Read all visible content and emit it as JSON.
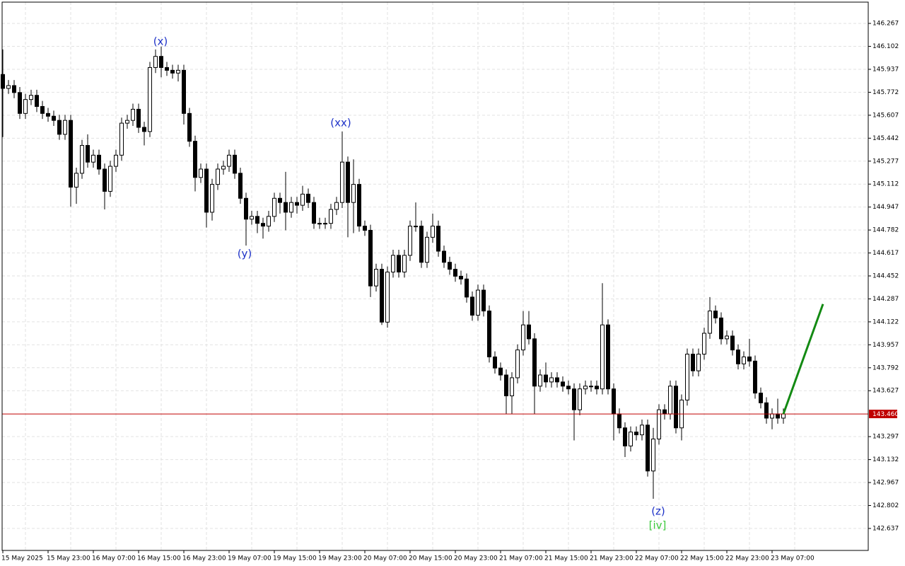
{
  "chart_data": {
    "type": "candlestick",
    "categories": [
      "15 May 2025",
      null,
      null,
      null,
      null,
      null,
      null,
      null,
      "15 May 23:00",
      null,
      null,
      null,
      null,
      null,
      null,
      null,
      "16 May 07:00",
      null,
      null,
      null,
      null,
      null,
      null,
      null,
      "16 May 15:00",
      null,
      null,
      null,
      null,
      null,
      null,
      null,
      "16 May 23:00",
      null,
      null,
      null,
      null,
      null,
      null,
      null,
      "19 May 07:00",
      null,
      null,
      null,
      null,
      null,
      null,
      null,
      "19 May 15:00",
      null,
      null,
      null,
      null,
      null,
      null,
      null,
      "19 May 23:00",
      null,
      null,
      null,
      null,
      null,
      null,
      null,
      "20 May 07:00",
      null,
      null,
      null,
      null,
      null,
      null,
      null,
      "20 May 15:00",
      null,
      null,
      null,
      null,
      null,
      null,
      null,
      "20 May 23:00",
      null,
      null,
      null,
      null,
      null,
      null,
      null,
      "21 May 07:00",
      null,
      null,
      null,
      null,
      null,
      null,
      null,
      "21 May 15:00",
      null,
      null,
      null,
      null,
      null,
      null,
      null,
      "21 May 23:00",
      null,
      null,
      null,
      null,
      null,
      null,
      null,
      "22 May 07:00",
      null,
      null,
      null,
      null,
      null,
      null,
      null,
      "22 May 15:00",
      null,
      null,
      null,
      null,
      null,
      null,
      null,
      "22 May 23:00",
      null,
      null,
      null,
      null,
      null,
      null,
      null,
      "23 May 07:00",
      null,
      null
    ],
    "open": [
      145.9,
      145.8,
      145.82,
      145.77,
      145.62,
      145.72,
      145.75,
      145.67,
      145.62,
      145.6,
      145.57,
      145.47,
      145.57,
      145.09,
      145.19,
      145.39,
      145.27,
      145.32,
      145.22,
      145.06,
      145.24,
      145.32,
      145.55,
      145.57,
      145.65,
      145.52,
      145.49,
      145.95,
      146.03,
      145.95,
      145.93,
      145.91,
      145.93,
      145.62,
      145.42,
      145.16,
      145.22,
      144.91,
      145.11,
      145.22,
      145.24,
      145.32,
      145.19,
      145.01,
      144.86,
      144.88,
      144.83,
      144.81,
      144.88,
      145.01,
      144.98,
      144.91,
      144.98,
      144.96,
      145.04,
      144.98,
      144.83,
      144.83,
      144.83,
      144.93,
      144.98,
      145.27,
      144.98,
      145.11,
      144.81,
      144.78,
      144.38,
      144.5,
      144.12,
      144.48,
      144.6,
      144.48,
      144.6,
      144.81,
      144.81,
      144.55,
      144.73,
      144.81,
      144.63,
      144.55,
      144.5,
      144.45,
      144.43,
      144.3,
      144.17,
      144.35,
      144.2,
      143.87,
      143.79,
      143.74,
      143.59,
      143.72,
      143.92,
      144.1,
      144.0,
      143.66,
      143.74,
      143.69,
      143.72,
      143.69,
      143.66,
      143.64,
      143.49,
      143.64,
      143.66,
      143.66,
      143.64,
      144.1,
      143.64,
      143.46,
      143.36,
      143.23,
      143.33,
      143.31,
      143.38,
      143.05,
      143.28,
      143.49,
      143.46,
      143.66,
      143.36,
      143.56,
      143.89,
      143.77,
      143.89,
      144.04,
      144.2,
      144.15,
      144.0,
      144.02,
      143.92,
      143.82,
      143.87,
      143.84,
      143.61,
      143.54,
      143.43,
      143.46,
      143.43
    ],
    "high": [
      146.08,
      145.86,
      145.86,
      145.81,
      145.76,
      145.79,
      145.79,
      145.71,
      145.66,
      145.64,
      145.61,
      145.61,
      145.61,
      145.23,
      145.43,
      145.47,
      145.36,
      145.36,
      145.26,
      145.28,
      145.36,
      145.59,
      145.61,
      145.69,
      145.69,
      145.56,
      145.99,
      146.08,
      146.1,
      145.99,
      145.97,
      145.97,
      145.97,
      145.66,
      145.46,
      145.26,
      145.26,
      145.15,
      145.26,
      145.28,
      145.36,
      145.36,
      145.23,
      145.05,
      144.92,
      144.92,
      144.87,
      144.92,
      145.05,
      145.05,
      145.2,
      145.02,
      145.02,
      145.1,
      145.08,
      145.02,
      144.87,
      144.87,
      144.97,
      145.02,
      145.49,
      145.31,
      145.29,
      145.15,
      144.85,
      144.82,
      144.54,
      144.54,
      144.52,
      144.64,
      144.64,
      144.64,
      144.85,
      144.98,
      144.85,
      144.77,
      144.9,
      144.85,
      144.67,
      144.59,
      144.54,
      144.49,
      144.47,
      144.34,
      144.39,
      144.39,
      144.24,
      143.91,
      143.83,
      143.78,
      143.76,
      143.96,
      144.2,
      144.2,
      144.04,
      143.78,
      143.83,
      143.76,
      143.76,
      143.73,
      143.7,
      143.68,
      143.68,
      143.7,
      143.7,
      143.7,
      144.4,
      144.14,
      143.68,
      143.5,
      143.4,
      143.37,
      143.37,
      143.42,
      143.42,
      143.36,
      143.53,
      143.53,
      143.7,
      143.7,
      143.6,
      143.93,
      143.93,
      143.93,
      144.08,
      144.3,
      144.24,
      144.19,
      144.06,
      144.06,
      143.96,
      143.91,
      144.0,
      143.88,
      143.65,
      143.58,
      143.5,
      143.57,
      143.5
    ],
    "low": [
      145.45,
      145.76,
      145.73,
      145.58,
      145.58,
      145.68,
      145.63,
      145.58,
      145.56,
      145.53,
      145.43,
      145.43,
      144.95,
      144.97,
      145.15,
      145.23,
      145.23,
      145.18,
      144.93,
      145.02,
      145.2,
      145.28,
      145.51,
      145.53,
      145.48,
      145.39,
      145.45,
      145.91,
      145.88,
      145.89,
      145.87,
      145.85,
      145.54,
      145.38,
      145.06,
      145.12,
      144.8,
      144.85,
      145.07,
      145.18,
      145.2,
      145.15,
      144.97,
      144.67,
      144.82,
      144.76,
      144.72,
      144.77,
      144.84,
      144.9,
      144.78,
      144.87,
      144.9,
      144.92,
      144.94,
      144.79,
      144.79,
      144.79,
      144.79,
      144.89,
      144.94,
      144.73,
      144.76,
      144.77,
      144.74,
      144.3,
      144.34,
      144.1,
      144.08,
      144.44,
      144.44,
      144.44,
      144.56,
      144.77,
      144.51,
      144.51,
      144.69,
      144.59,
      144.51,
      144.46,
      144.41,
      144.39,
      144.26,
      144.13,
      144.13,
      144.16,
      143.83,
      143.75,
      143.7,
      143.46,
      143.46,
      143.68,
      143.88,
      143.96,
      143.46,
      143.62,
      143.65,
      143.65,
      143.65,
      143.62,
      143.6,
      143.27,
      143.45,
      143.6,
      143.62,
      143.6,
      143.6,
      143.6,
      143.27,
      143.32,
      143.15,
      143.19,
      143.27,
      143.27,
      143.01,
      142.85,
      143.24,
      143.42,
      143.42,
      143.32,
      143.27,
      143.52,
      143.73,
      143.73,
      143.85,
      144.0,
      144.11,
      143.96,
      143.96,
      143.88,
      143.78,
      143.78,
      143.8,
      143.57,
      143.5,
      143.39,
      143.35,
      143.39,
      143.39
    ],
    "close": [
      145.8,
      145.82,
      145.77,
      145.62,
      145.72,
      145.75,
      145.67,
      145.62,
      145.6,
      145.57,
      145.47,
      145.57,
      145.09,
      145.19,
      145.39,
      145.27,
      145.32,
      145.22,
      145.06,
      145.24,
      145.32,
      145.55,
      145.57,
      145.65,
      145.52,
      145.49,
      145.95,
      146.03,
      145.95,
      145.93,
      145.91,
      145.93,
      145.62,
      145.42,
      145.16,
      145.22,
      144.91,
      145.11,
      145.22,
      145.24,
      145.32,
      145.19,
      145.01,
      144.86,
      144.88,
      144.83,
      144.81,
      144.88,
      145.01,
      144.98,
      144.91,
      144.98,
      144.96,
      145.04,
      144.98,
      144.83,
      144.83,
      144.83,
      144.93,
      144.98,
      145.27,
      144.98,
      145.11,
      144.81,
      144.78,
      144.38,
      144.5,
      144.12,
      144.48,
      144.6,
      144.48,
      144.6,
      144.81,
      144.81,
      144.55,
      144.73,
      144.81,
      144.63,
      144.55,
      144.5,
      144.45,
      144.43,
      144.3,
      144.17,
      144.35,
      144.2,
      143.87,
      143.79,
      143.74,
      143.59,
      143.72,
      143.92,
      144.1,
      144.0,
      143.66,
      143.74,
      143.69,
      143.72,
      143.69,
      143.66,
      143.64,
      143.49,
      143.64,
      143.66,
      143.66,
      143.64,
      144.1,
      143.64,
      143.46,
      143.36,
      143.23,
      143.33,
      143.31,
      143.38,
      143.05,
      143.28,
      143.49,
      143.46,
      143.66,
      143.36,
      143.56,
      143.89,
      143.77,
      143.89,
      144.04,
      144.2,
      144.15,
      144.0,
      144.02,
      143.92,
      143.82,
      143.87,
      143.84,
      143.61,
      143.54,
      143.43,
      143.46,
      143.43,
      143.46
    ],
    "up_color": "#ffffff",
    "down_color": "#000000",
    "ylim": [
      142.479,
      146.42
    ],
    "yticks": [
      146.267,
      146.102,
      145.937,
      145.772,
      145.607,
      145.442,
      145.277,
      145.112,
      144.947,
      144.782,
      144.617,
      144.452,
      144.287,
      144.122,
      143.957,
      143.792,
      143.627,
      143.297,
      143.132,
      142.967,
      142.802,
      142.637
    ],
    "grid": true,
    "current_price": {
      "value": 143.46,
      "label": "143.460",
      "color": "#c00000"
    },
    "forecast": {
      "color": "#138a13",
      "values": [
        143.46,
        144.25
      ]
    },
    "annotations": [
      {
        "text": "(x)",
        "color": "#1e32c8"
      },
      {
        "text": "(xx)",
        "color": "#1e32c8"
      },
      {
        "text": "(y)",
        "color": "#1e32c8"
      },
      {
        "text": "(z)",
        "color": "#1e32c8"
      },
      {
        "text": "[iv]",
        "color": "#3cc83c"
      }
    ]
  }
}
